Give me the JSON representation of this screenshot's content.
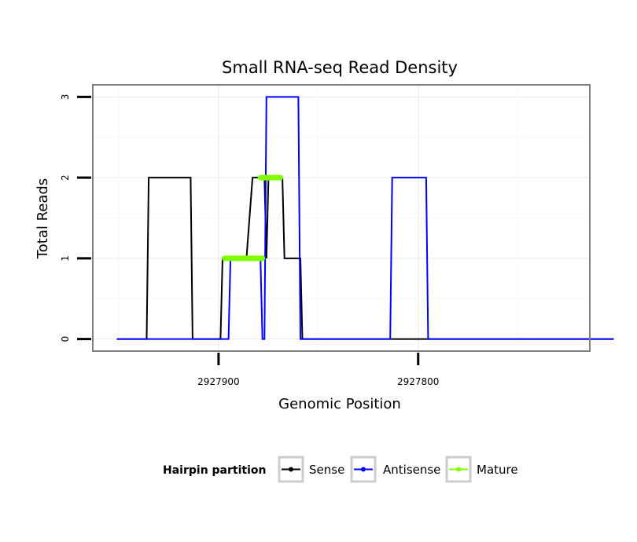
{
  "chart_data": {
    "type": "line",
    "title": "Small RNA-seq Read Density",
    "xlabel": "Genomic Position",
    "ylabel": "Total Reads",
    "x_reversed": true,
    "xlim": [
      2927963,
      2927714
    ],
    "ylim": [
      -0.15,
      3.15
    ],
    "x_ticks": [
      2927900,
      2927800
    ],
    "x_tick_labels": [
      "2927900",
      "2927800"
    ],
    "y_ticks": [
      0,
      1,
      2,
      3
    ],
    "y_tick_labels": [
      "0",
      "1",
      "2",
      "3"
    ],
    "grid": true,
    "legend": {
      "title": "Hairpin partition",
      "placement": "bottom",
      "entries": [
        {
          "name": "Sense",
          "color": "#000000"
        },
        {
          "name": "Antisense",
          "color": "#0000ff"
        },
        {
          "name": "Mature",
          "color": "#7fff00"
        }
      ]
    },
    "series": [
      {
        "name": "Sense",
        "color": "#000000",
        "points": [
          [
            2927951,
            0
          ],
          [
            2927936,
            0
          ],
          [
            2927935,
            2
          ],
          [
            2927914,
            2
          ],
          [
            2927913,
            0
          ],
          [
            2927899,
            0
          ],
          [
            2927898,
            1
          ],
          [
            2927886,
            1
          ],
          [
            2927883,
            2
          ],
          [
            2927877,
            2
          ],
          [
            2927876,
            1
          ],
          [
            2927875,
            2
          ],
          [
            2927868,
            2
          ],
          [
            2927867,
            1
          ],
          [
            2927859,
            1
          ],
          [
            2927858,
            0
          ],
          [
            2927702,
            0
          ]
        ]
      },
      {
        "name": "Antisense",
        "color": "#0000ff",
        "points": [
          [
            2927951,
            0
          ],
          [
            2927936,
            0
          ],
          [
            2927915,
            0
          ],
          [
            2927914,
            0
          ],
          [
            2927895,
            0
          ],
          [
            2927894,
            1
          ],
          [
            2927879,
            1
          ],
          [
            2927878,
            0
          ],
          [
            2927877,
            0
          ],
          [
            2927876,
            3
          ],
          [
            2927860,
            3
          ],
          [
            2927859,
            0
          ],
          [
            2927840,
            0
          ],
          [
            2927839,
            0
          ],
          [
            2927814,
            0
          ],
          [
            2927813,
            2
          ],
          [
            2927796,
            2
          ],
          [
            2927795,
            0
          ],
          [
            2927702,
            0
          ]
        ]
      },
      {
        "name": "Mature",
        "color": "#7fff00",
        "segments": [
          {
            "x_start": 2927897,
            "x_end": 2927878,
            "y": 1
          },
          {
            "x_start": 2927879,
            "x_end": 2927869,
            "y": 2
          }
        ]
      }
    ]
  }
}
